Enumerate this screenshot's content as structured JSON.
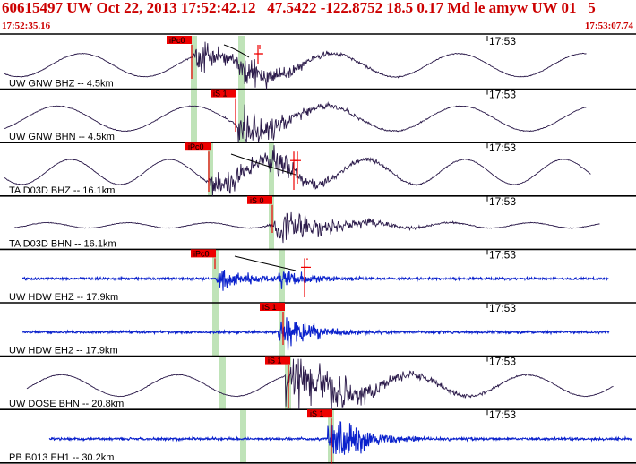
{
  "header": {
    "title": "60615497 UW Oct 22, 2013 17:52:42.12   47.5422 -122.8752 18.5 0.17 Md le amyw UW 01   5",
    "start_time": "17:52:35.16",
    "end_time": "17:53:07.74"
  },
  "colors": {
    "title": "#cc0000",
    "trace_short_period": "#2b1a4a",
    "trace_broadband_blue": "#0b22cc",
    "pick_box": "#ee0000",
    "window_band": "#bfe3b8",
    "theoretical_curve": "#000000"
  },
  "panels": [
    {
      "station": "UW GNW BHZ -- 4.5km",
      "time_tick": "17:53",
      "pick_label": "iPc0",
      "trace": "purple"
    },
    {
      "station": "UW GNW BHN -- 4.5km",
      "time_tick": "17:53",
      "pick_label": "iS 1",
      "trace": "purple"
    },
    {
      "station": "TA D03D BHZ -- 16.1km",
      "time_tick": "17:53",
      "pick_label": "iPc0",
      "trace": "purple"
    },
    {
      "station": "TA D03D BHN -- 16.1km",
      "time_tick": "17:53",
      "pick_label": "iS 0",
      "trace": "purple"
    },
    {
      "station": "UW HDW EHZ -- 17.9km",
      "time_tick": "17:53",
      "pick_label": "iPc0",
      "trace": "blue"
    },
    {
      "station": "UW HDW EH2 -- 17.9km",
      "time_tick": "17:53",
      "pick_label": "iS 1",
      "trace": "blue"
    },
    {
      "station": "UW DOSE BHN -- 20.8km",
      "time_tick": "17:53",
      "pick_label": "iS 1",
      "trace": "purple"
    },
    {
      "station": "PB B013 EH1 -- 30.2km",
      "time_tick": "17:53",
      "pick_label": "iS 1",
      "trace": "blue"
    }
  ]
}
